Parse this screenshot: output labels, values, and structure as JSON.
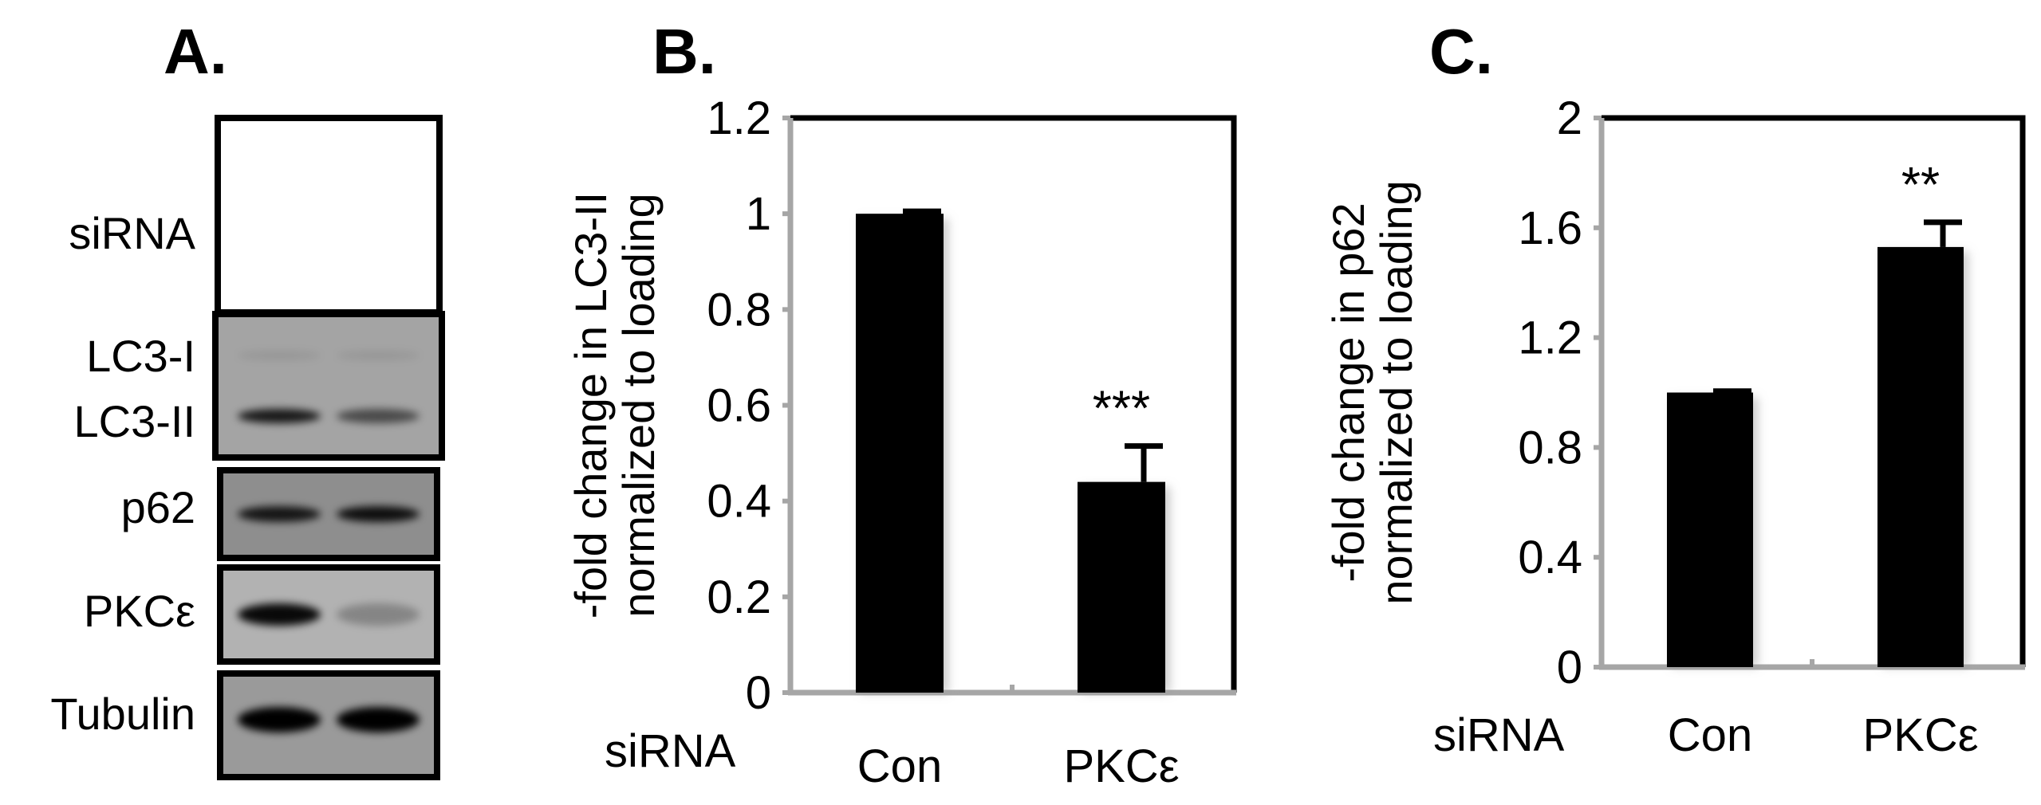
{
  "panels": {
    "a": {
      "letter": "A."
    },
    "b": {
      "letter": "B."
    },
    "c": {
      "letter": "C."
    }
  },
  "blot": {
    "labels": {
      "sirna": "siRNA",
      "lc3i": "LC3-I",
      "lc3ii": "LC3-II",
      "p62": "p62",
      "pkc": "PKCε",
      "tubulin": "Tubulin"
    },
    "band_intensity": {
      "lc3i": [
        0.08,
        0.08
      ],
      "lc3ii": [
        0.85,
        0.55
      ],
      "p62": [
        0.85,
        0.9
      ],
      "pkc": [
        0.95,
        0.25
      ],
      "tubulin": [
        1.0,
        1.0
      ]
    }
  },
  "chart_data": [
    {
      "type": "bar",
      "categories": [
        "Con",
        "PKCε"
      ],
      "values": [
        1.0,
        0.44
      ],
      "errors": [
        0.005,
        0.075
      ],
      "annotations": [
        "",
        "***"
      ],
      "xlabel": "siRNA",
      "ylabel": [
        "-fold change in LC3-II",
        "normalized to loading"
      ],
      "ylim": [
        0,
        1.2
      ],
      "yticks": [
        "0",
        "0.2",
        "0.4",
        "0.6",
        "0.8",
        "1",
        "1.2"
      ],
      "grid": false
    },
    {
      "type": "bar",
      "categories": [
        "Con",
        "PKCε"
      ],
      "values": [
        1.0,
        1.53
      ],
      "errors": [
        0.005,
        0.09
      ],
      "annotations": [
        "",
        "**"
      ],
      "xlabel": "siRNA",
      "ylabel": [
        "-fold change in p62",
        "normalized to loading"
      ],
      "ylim": [
        0,
        2
      ],
      "yticks": [
        "0",
        "0.4",
        "0.8",
        "1.2",
        "1.6",
        "2"
      ],
      "grid": false
    }
  ]
}
